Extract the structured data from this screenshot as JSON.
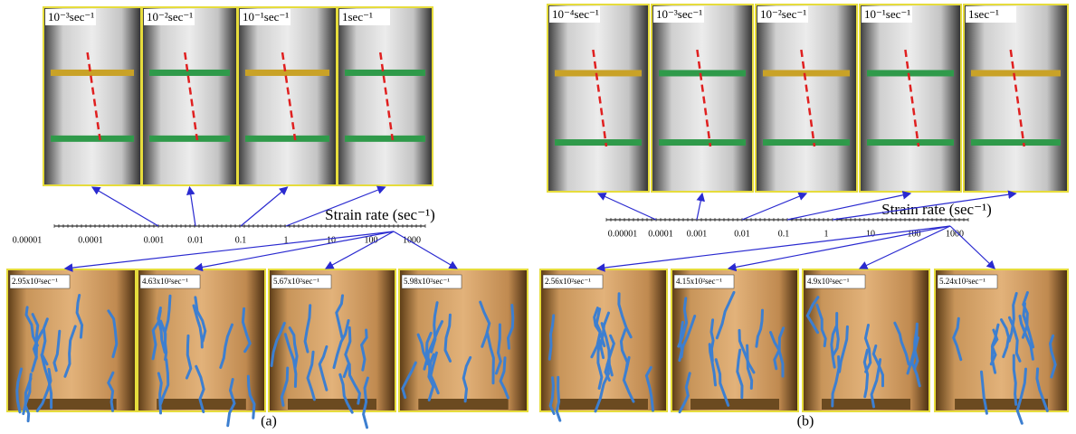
{
  "panels": [
    {
      "caption": "(a)",
      "quasi_static_images": [
        "10⁻³sec⁻¹",
        "10⁻²sec⁻¹",
        "10⁻¹sec⁻¹",
        "1sec⁻¹"
      ],
      "axis": {
        "title": "Strain rate (sec⁻¹)",
        "tick_labels": [
          "0.00001",
          "0.0001",
          "0.001",
          "0.01",
          "0.1",
          "1",
          "10",
          "100",
          "1000"
        ]
      },
      "dynamic_images": [
        "2.95x10²sec⁻¹",
        "4.63x10²sec⁻¹",
        "5.67x10²sec⁻¹",
        "5.98x10²sec⁻¹"
      ]
    },
    {
      "caption": "(b)",
      "quasi_static_images": [
        "10⁻⁴sec⁻¹",
        "10⁻³sec⁻¹",
        "10⁻²sec⁻¹",
        "10⁻¹sec⁻¹",
        "1sec⁻¹"
      ],
      "axis": {
        "title": "Strain rate (sec⁻¹)",
        "tick_labels": [
          "0.00001",
          "0.0001",
          "0.001",
          "0.01",
          "0.1",
          "1",
          "10",
          "100",
          "1000"
        ]
      },
      "dynamic_images": [
        "2.56x10²sec⁻¹",
        "4.15x10²sec⁻¹",
        "4.9x10²sec⁻¹",
        "5.24x10²sec⁻¹"
      ]
    }
  ]
}
